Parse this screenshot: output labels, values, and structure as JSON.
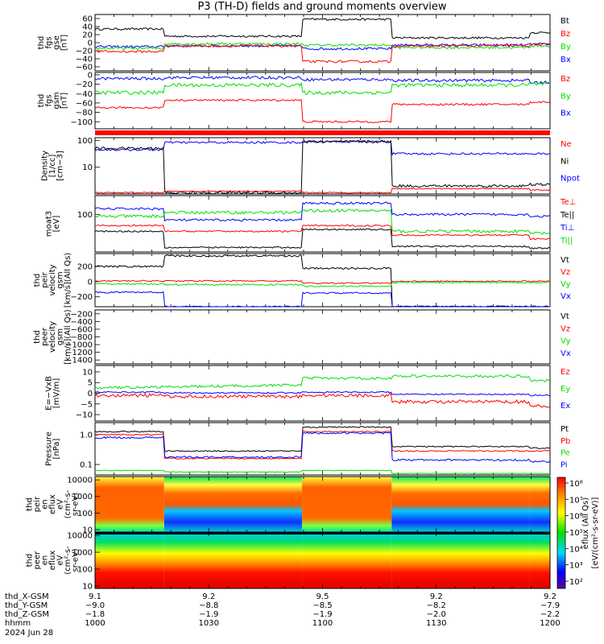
{
  "title": "P3 (TH-D) fields and ground moments overview",
  "colors": {
    "black": "#000000",
    "red": "#ff0000",
    "green": "#00e000",
    "blue": "#0000ff"
  },
  "chart_data": [
    {
      "type": "line",
      "id": "fgs-gse",
      "ylabel_lines": [
        "thd",
        "fgs",
        "gse",
        "[nT]"
      ],
      "yticks": [
        "60",
        "40",
        "20",
        "0",
        "−20",
        "−40",
        "−60"
      ],
      "ylim": [
        -70,
        70
      ],
      "legend": [
        {
          "name": "Bt",
          "color": "black"
        },
        {
          "name": "Bz",
          "color": "red"
        },
        {
          "name": "By",
          "color": "green"
        },
        {
          "name": "Bx",
          "color": "blue"
        }
      ]
    },
    {
      "type": "line",
      "id": "fgs-gsm",
      "ylabel_lines": [
        "thd",
        "fgs",
        "gsm",
        "[nT]"
      ],
      "yticks": [
        "0",
        "−20",
        "−40",
        "−60",
        "−80",
        "−100"
      ],
      "ylim": [
        -115,
        5
      ],
      "legend": [
        {
          "name": "Bz",
          "color": "red"
        },
        {
          "name": "By",
          "color": "green"
        },
        {
          "name": "Bx",
          "color": "blue"
        }
      ]
    },
    {
      "type": "line",
      "id": "density",
      "ylabel_lines": [
        "Density",
        "[1/cc]",
        "[cm−3]"
      ],
      "yticks": [
        "100",
        "10"
      ],
      "log": true,
      "legend": [
        {
          "name": "Ne",
          "color": "red"
        },
        {
          "name": "Ni",
          "color": "black"
        },
        {
          "name": "Npot",
          "color": "blue"
        }
      ]
    },
    {
      "type": "line",
      "id": "temp",
      "ylabel_lines": [
        "moat3",
        "[eV]"
      ],
      "yticks": [
        "100"
      ],
      "log": true,
      "legend": [
        {
          "name": "Te⊥",
          "color": "red"
        },
        {
          "name": "Te||",
          "color": "black"
        },
        {
          "name": "Ti⊥",
          "color": "blue"
        },
        {
          "name": "Ti||",
          "color": "green"
        }
      ]
    },
    {
      "type": "line",
      "id": "peir-vel",
      "ylabel_lines": [
        "thd",
        "peir",
        "velocity",
        "gsm",
        "[km/s](All Qs)"
      ],
      "yticks": [
        "200",
        "0",
        "−200"
      ],
      "ylim": [
        -330,
        370
      ],
      "legend": [
        {
          "name": "Vt",
          "color": "black"
        },
        {
          "name": "Vz",
          "color": "red"
        },
        {
          "name": "Vy",
          "color": "green"
        },
        {
          "name": "Vx",
          "color": "blue"
        }
      ]
    },
    {
      "type": "line",
      "id": "peer-vel",
      "ylabel_lines": [
        "thd",
        "peer",
        "velocity",
        "gsm",
        "[km/s](All Qs)"
      ],
      "yticks": [
        "−200",
        "−400",
        "−600",
        "−800",
        "−1000",
        "−1200",
        "−1400"
      ],
      "ylim": [
        -1500,
        -100
      ],
      "legend": [
        {
          "name": "Vt",
          "color": "black"
        },
        {
          "name": "Vz",
          "color": "red"
        },
        {
          "name": "Vy",
          "color": "green"
        },
        {
          "name": "Vx",
          "color": "blue"
        }
      ]
    },
    {
      "type": "line",
      "id": "efield",
      "ylabel_lines": [
        "E=−VxB",
        "[mV/m]"
      ],
      "yticks": [
        "10",
        "5",
        "0",
        "−5",
        "−10"
      ],
      "ylim": [
        -13,
        13
      ],
      "legend": [
        {
          "name": "Ez",
          "color": "red"
        },
        {
          "name": "Ey",
          "color": "green"
        },
        {
          "name": "Ex",
          "color": "blue"
        }
      ]
    },
    {
      "type": "line",
      "id": "pressure",
      "ylabel_lines": [
        "Pressure",
        "[nPa]"
      ],
      "yticks": [
        "1.0",
        "0.1"
      ],
      "log": true,
      "legend": [
        {
          "name": "Pt",
          "color": "black"
        },
        {
          "name": "Pb",
          "color": "red"
        },
        {
          "name": "Pe",
          "color": "green"
        },
        {
          "name": "Pi",
          "color": "blue"
        }
      ]
    },
    {
      "type": "heatmap",
      "id": "peir-spec",
      "ylabel_lines": [
        "thd",
        "peir",
        "en",
        "eflux",
        "eV",
        "(cm²-s-",
        "sr-eV)"
      ],
      "yticks": [
        "10000",
        "1000",
        "100",
        "10"
      ]
    },
    {
      "type": "heatmap",
      "id": "peer-spec",
      "ylabel_lines": [
        "thd",
        "peer",
        "en",
        "eflux",
        "eV",
        "(cm²-s-",
        "sr-eV)"
      ],
      "yticks": [
        "10000",
        "1000",
        "100",
        "10"
      ]
    }
  ],
  "colorbar": {
    "ticks": [
      "10⁸",
      "10⁷",
      "10⁶",
      "10⁵",
      "10⁴",
      "10³",
      "10²"
    ],
    "label": "[eV/(cm²-s-sr-eV)]",
    "label2": "eflux (All Qs)"
  },
  "x_axis": {
    "ticks": [
      "1000",
      "1030",
      "1100",
      "1130",
      "1200"
    ],
    "row_labels": [
      "thd_X-GSM",
      "thd_Y-GSM",
      "thd_Z-GSM",
      "hhmm",
      "2024 Jun 28"
    ],
    "rows": [
      [
        "9.1",
        "9.2",
        "9.5",
        "9.2",
        "9.2"
      ],
      [
        "−9.0",
        "−8.8",
        "−8.5",
        "−8.2",
        "−7.9"
      ],
      [
        "−1.8",
        "−1.9",
        "−1.9",
        "−2.0",
        "−2.2"
      ]
    ]
  }
}
